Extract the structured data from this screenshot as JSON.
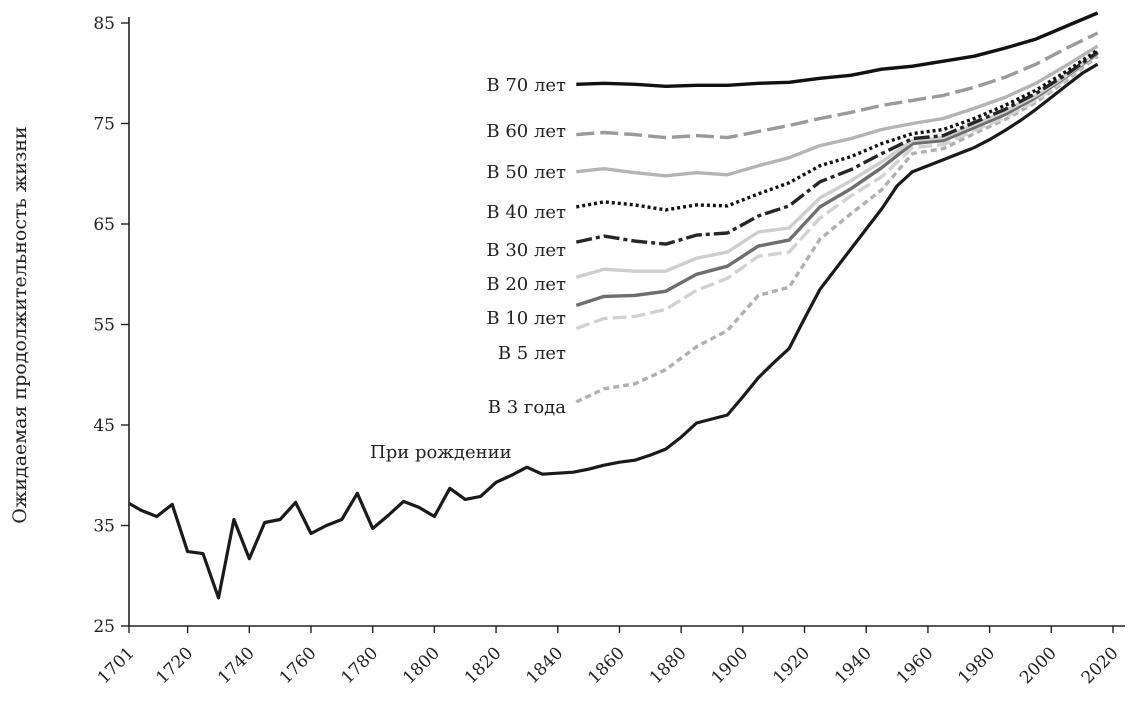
{
  "chart_data": {
    "type": "line",
    "ylabel": "Ожидаемая продолжительность жизни",
    "xlabel": "",
    "ylim": [
      25,
      85
    ],
    "xlim": [
      1701,
      2020
    ],
    "yticks": [
      25,
      35,
      45,
      55,
      65,
      75,
      85
    ],
    "xticks": [
      1701,
      1720,
      1740,
      1760,
      1780,
      1800,
      1820,
      1840,
      1860,
      1880,
      1900,
      1920,
      1940,
      1960,
      1980,
      2000,
      2020
    ],
    "grid": false,
    "series": [
      {
        "name": "При рождении",
        "color": "#1a1a1a",
        "dash": "solid",
        "x": [
          1701,
          1705,
          1710,
          1715,
          1720,
          1725,
          1730,
          1735,
          1740,
          1745,
          1750,
          1755,
          1760,
          1765,
          1770,
          1775,
          1780,
          1785,
          1790,
          1795,
          1800,
          1805,
          1810,
          1815,
          1820,
          1825,
          1830,
          1835,
          1840,
          1845,
          1850,
          1855,
          1860,
          1865,
          1870,
          1875,
          1880,
          1885,
          1890,
          1895,
          1900,
          1905,
          1910,
          1915,
          1920,
          1925,
          1930,
          1935,
          1940,
          1945,
          1950,
          1955,
          1960,
          1965,
          1970,
          1975,
          1980,
          1985,
          1990,
          1995,
          2000,
          2005,
          2010,
          2015
        ],
        "values": [
          37.2,
          36.5,
          35.9,
          37.1,
          32.4,
          32.2,
          27.8,
          35.6,
          31.7,
          35.3,
          35.6,
          37.3,
          34.2,
          35.0,
          35.6,
          38.2,
          34.7,
          36.0,
          37.4,
          36.8,
          35.9,
          38.7,
          37.6,
          37.9,
          39.3,
          40.0,
          40.8,
          40.1,
          40.2,
          40.3,
          40.6,
          41.0,
          41.3,
          41.5,
          42.0,
          42.6,
          43.8,
          45.2,
          45.6,
          46.0,
          47.8,
          49.7,
          51.2,
          52.6,
          55.6,
          58.5,
          60.5,
          62.5,
          64.5,
          66.5,
          68.8,
          70.2,
          70.8,
          71.4,
          72.0,
          72.6,
          73.4,
          74.3,
          75.3,
          76.4,
          77.6,
          78.8,
          80.0,
          80.9
        ]
      },
      {
        "name": "В 3 года",
        "color": "#b0b0b0",
        "dash": "6,4",
        "x": [
          1846,
          1855,
          1865,
          1875,
          1885,
          1895,
          1905,
          1915,
          1925,
          1935,
          1945,
          1955,
          1965,
          1975,
          1985,
          1995,
          2005,
          2015
        ],
        "values": [
          47.3,
          48.6,
          49.1,
          50.5,
          52.8,
          54.4,
          57.9,
          58.7,
          63.5,
          66.0,
          68.4,
          72.0,
          72.5,
          74.0,
          75.4,
          77.1,
          79.3,
          81.7
        ]
      },
      {
        "name": "В 5 лет",
        "color": "#d2d2d2",
        "dash": "14,5",
        "x": [
          1846,
          1855,
          1865,
          1875,
          1885,
          1895,
          1905,
          1915,
          1925,
          1935,
          1945,
          1955,
          1965,
          1975,
          1985,
          1995,
          2005,
          2015
        ],
        "values": [
          54.6,
          55.6,
          55.8,
          56.5,
          58.4,
          59.6,
          61.8,
          62.2,
          65.6,
          67.8,
          69.7,
          72.6,
          72.9,
          74.3,
          75.6,
          77.3,
          79.5,
          81.9
        ]
      },
      {
        "name": "В 10 лет",
        "color": "#6e6e6e",
        "dash": "solid",
        "x": [
          1846,
          1855,
          1865,
          1875,
          1885,
          1895,
          1905,
          1915,
          1925,
          1935,
          1945,
          1955,
          1965,
          1975,
          1985,
          1995,
          2005,
          2015
        ],
        "values": [
          56.9,
          57.8,
          57.9,
          58.3,
          60.0,
          60.8,
          62.8,
          63.4,
          66.7,
          68.5,
          70.6,
          73.0,
          73.3,
          74.6,
          75.9,
          77.6,
          79.7,
          82.0
        ]
      },
      {
        "name": "В 20 лет",
        "color": "#cecece",
        "dash": "solid",
        "x": [
          1846,
          1855,
          1865,
          1875,
          1885,
          1895,
          1905,
          1915,
          1925,
          1935,
          1945,
          1955,
          1965,
          1975,
          1985,
          1995,
          2005,
          2015
        ],
        "values": [
          59.7,
          60.5,
          60.3,
          60.3,
          61.6,
          62.2,
          64.2,
          64.6,
          67.6,
          69.3,
          71.2,
          73.3,
          73.6,
          74.9,
          76.2,
          77.8,
          79.8,
          82.1
        ]
      },
      {
        "name": "В 30 лет",
        "color": "#262626",
        "dash": "16,4,4,4",
        "x": [
          1846,
          1855,
          1865,
          1875,
          1885,
          1895,
          1905,
          1915,
          1925,
          1935,
          1945,
          1955,
          1965,
          1975,
          1985,
          1995,
          2005,
          2015
        ],
        "values": [
          63.2,
          63.8,
          63.3,
          63.0,
          63.9,
          64.1,
          65.8,
          66.8,
          69.2,
          70.4,
          72.0,
          73.5,
          73.8,
          75.1,
          76.4,
          78.0,
          79.9,
          82.1
        ]
      },
      {
        "name": "В 40 лет",
        "color": "#111111",
        "dash": "3,3",
        "x": [
          1846,
          1855,
          1865,
          1875,
          1885,
          1895,
          1905,
          1915,
          1925,
          1935,
          1945,
          1955,
          1965,
          1975,
          1985,
          1995,
          2005,
          2015
        ],
        "values": [
          66.7,
          67.2,
          66.9,
          66.4,
          66.9,
          66.8,
          68.0,
          69.1,
          70.8,
          71.7,
          73.0,
          74.0,
          74.4,
          75.5,
          76.8,
          78.3,
          80.2,
          82.3
        ]
      },
      {
        "name": "В 50 лет",
        "color": "#b4b4b4",
        "dash": "solid",
        "x": [
          1846,
          1855,
          1865,
          1875,
          1885,
          1895,
          1905,
          1915,
          1925,
          1935,
          1945,
          1955,
          1965,
          1975,
          1985,
          1995,
          2005,
          2015
        ],
        "values": [
          70.2,
          70.5,
          70.1,
          69.8,
          70.1,
          69.9,
          70.8,
          71.6,
          72.8,
          73.5,
          74.4,
          75.0,
          75.5,
          76.5,
          77.6,
          79.0,
          80.8,
          82.7
        ]
      },
      {
        "name": "В 60 лет",
        "color": "#9a9a9a",
        "dash": "18,6",
        "x": [
          1846,
          1855,
          1865,
          1875,
          1885,
          1895,
          1905,
          1915,
          1925,
          1935,
          1945,
          1955,
          1965,
          1975,
          1985,
          1995,
          2005,
          2015
        ],
        "values": [
          73.9,
          74.1,
          73.9,
          73.6,
          73.8,
          73.6,
          74.2,
          74.8,
          75.5,
          76.1,
          76.8,
          77.3,
          77.8,
          78.6,
          79.6,
          80.9,
          82.5,
          84.0
        ]
      },
      {
        "name": "В 70 лет",
        "color": "#111111",
        "dash": "solid",
        "x": [
          1846,
          1855,
          1865,
          1875,
          1885,
          1895,
          1905,
          1915,
          1925,
          1935,
          1945,
          1955,
          1965,
          1975,
          1985,
          1995,
          2005,
          2015
        ],
        "values": [
          78.9,
          79.0,
          78.9,
          78.7,
          78.8,
          78.8,
          79.0,
          79.1,
          79.5,
          79.8,
          80.4,
          80.7,
          81.2,
          81.7,
          82.5,
          83.4,
          84.7,
          86.0
        ]
      }
    ]
  }
}
